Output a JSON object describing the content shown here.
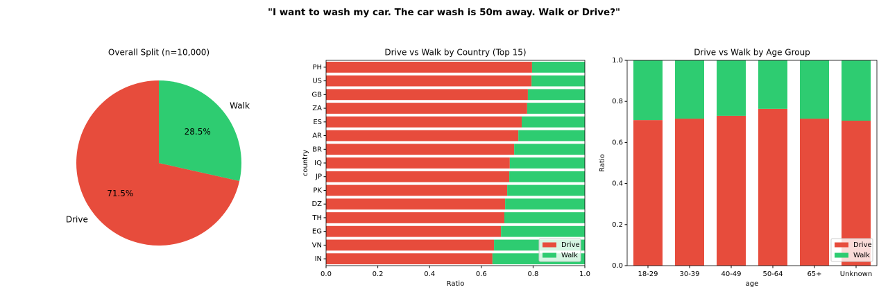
{
  "title": "\"I want to wash my car. The car wash is 50m away. Walk or Drive?\"",
  "chart_data": [
    {
      "type": "pie",
      "title": "Overall Split (n=10,000)",
      "categories": [
        "Drive",
        "Walk"
      ],
      "values": [
        71.5,
        28.5
      ],
      "value_labels": [
        "71.5%",
        "28.5%"
      ],
      "colors": [
        "#e74c3c",
        "#2ecc71"
      ],
      "start_angle": 90
    },
    {
      "type": "barh",
      "title": "Drive vs Walk by Country (Top 15)",
      "stacked": true,
      "x_label": "Ratio",
      "y_label": "country",
      "categories": [
        "PH",
        "US",
        "GB",
        "ZA",
        "ES",
        "AR",
        "BR",
        "IQ",
        "JP",
        "PK",
        "DZ",
        "TH",
        "EG",
        "VN",
        "IN"
      ],
      "series": [
        {
          "name": "Drive",
          "color": "#e74c3c",
          "values": [
            0.796,
            0.794,
            0.78,
            0.777,
            0.756,
            0.743,
            0.727,
            0.71,
            0.708,
            0.7,
            0.692,
            0.689,
            0.676,
            0.649,
            0.643
          ]
        },
        {
          "name": "Walk",
          "color": "#2ecc71",
          "values": [
            0.204,
            0.206,
            0.22,
            0.223,
            0.244,
            0.257,
            0.273,
            0.29,
            0.292,
            0.3,
            0.308,
            0.311,
            0.324,
            0.351,
            0.357
          ]
        }
      ],
      "xlim": [
        0,
        1
      ],
      "xticks": [
        {
          "value": 0,
          "label": "0.0"
        },
        0.2,
        0.4,
        0.6,
        0.8,
        {
          "value": 1,
          "label": "1.0"
        }
      ],
      "legend": "lower right",
      "grid": false
    },
    {
      "type": "bar",
      "title": "Drive vs Walk by Age Group",
      "stacked": true,
      "x_label": "age",
      "y_label": "Ratio",
      "categories": [
        "18-29",
        "30-39",
        "40-49",
        "50-64",
        "65+",
        "Unknown"
      ],
      "series": [
        {
          "name": "Drive",
          "color": "#e74c3c",
          "values": [
            0.709,
            0.716,
            0.73,
            0.764,
            0.716,
            0.706
          ]
        },
        {
          "name": "Walk",
          "color": "#2ecc71",
          "values": [
            0.291,
            0.284,
            0.27,
            0.236,
            0.284,
            0.294
          ]
        }
      ],
      "ylim": [
        0,
        1
      ],
      "yticks": [
        {
          "value": 0,
          "label": "0.0"
        },
        0.2,
        0.4,
        0.6,
        0.8,
        {
          "value": 1,
          "label": "1.0"
        }
      ],
      "legend": "lower right",
      "grid": false
    }
  ]
}
